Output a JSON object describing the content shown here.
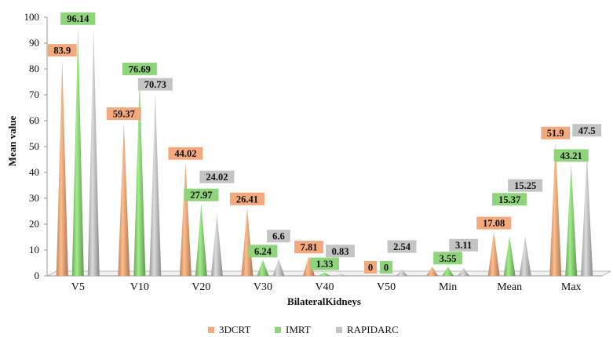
{
  "chart_data": {
    "type": "bar",
    "bar_shape": "cone",
    "title": "",
    "xlabel": "BilateralKidneys",
    "ylabel": "Mean value",
    "ylim": [
      0,
      100
    ],
    "yticks": [
      0,
      10,
      20,
      30,
      40,
      50,
      60,
      70,
      80,
      90,
      100
    ],
    "grid": false,
    "legend_position": "bottom",
    "categories": [
      "V5",
      "V10",
      "V20",
      "V30",
      "V40",
      "V50",
      "Min",
      "Mean",
      "Max"
    ],
    "series": [
      {
        "name": "3DCRT",
        "color": "#F4A97C",
        "values": [
          83.9,
          59.37,
          44.02,
          26.41,
          7.81,
          0,
          3.55,
          17.08,
          51.9
        ],
        "labels": [
          "83.9",
          "59.37",
          "44.02",
          "26.41",
          "7.81",
          "0",
          "",
          "17.08",
          "51.9"
        ]
      },
      {
        "name": "IMRT",
        "color": "#8ED47A",
        "values": [
          96.14,
          76.69,
          27.97,
          6.24,
          1.33,
          0,
          3.55,
          15.37,
          43.21
        ],
        "labels": [
          "96.14",
          "76.69",
          "27.97",
          "6.24",
          "1.33",
          "0",
          "3.55",
          "15.37",
          "43.21"
        ]
      },
      {
        "name": "RAPIDARC",
        "color": "#C4C4C4",
        "values": [
          95.51,
          70.73,
          24.02,
          6.6,
          0.83,
          2.54,
          3.11,
          15.25,
          47.5
        ],
        "labels": [
          "95.51",
          "70.73",
          "24.02",
          "6.6",
          "0.83",
          "2.54",
          "3.11",
          "15.25",
          "47.5"
        ]
      }
    ]
  }
}
